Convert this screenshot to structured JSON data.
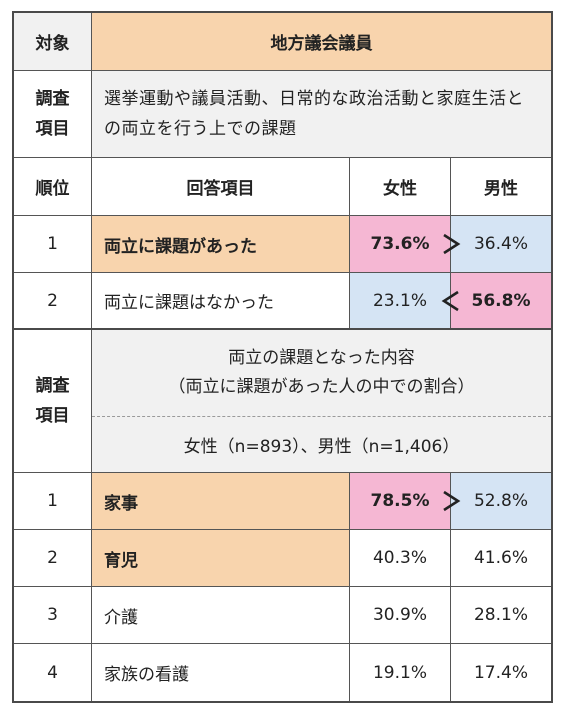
{
  "header": {
    "target_label": "対象",
    "target_value": "地方議会議員",
    "survey_label": "調査\n項目",
    "survey_value": "選挙運動や議員活動、日常的な政治活動と家庭生活との両立を行う上での課題"
  },
  "table1": {
    "col_rank": "順位",
    "col_item": "回答項目",
    "col_female": "女性",
    "col_male": "男性",
    "rows": [
      {
        "rank": "1",
        "item": "両立に課題があった",
        "female": "73.6%",
        "male": "36.4%"
      },
      {
        "rank": "2",
        "item": "両立に課題はなかった",
        "female": "23.1%",
        "male": "56.8%"
      }
    ]
  },
  "section2": {
    "survey_label": "調査\n項目",
    "line1": "両立の課題となった内容",
    "line2": "（両立に課題があった人の中での割合）",
    "sample": "女性（n=893）、男性（n=1,406）"
  },
  "table2": {
    "rows": [
      {
        "rank": "1",
        "item": "家事",
        "female": "78.5%",
        "male": "52.8%"
      },
      {
        "rank": "2",
        "item": "育児",
        "female": "40.3%",
        "male": "41.6%"
      },
      {
        "rank": "3",
        "item": "介護",
        "female": "30.9%",
        "male": "28.1%"
      },
      {
        "rank": "4",
        "item": "家族の看護",
        "female": "19.1%",
        "male": "17.4%"
      }
    ]
  },
  "colors": {
    "header_bg": "#f1f1f1",
    "peach": "#f8d4ad",
    "pink": "#f5b7d3",
    "blue": "#d5e4f4",
    "border": "#4a4a4a"
  }
}
